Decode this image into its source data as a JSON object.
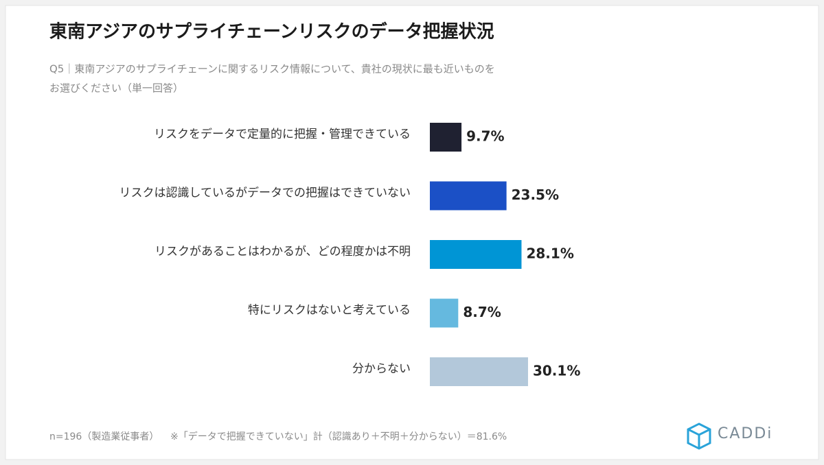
{
  "chart_data": {
    "type": "hbar",
    "title": "東南アジアのサプライチェーンリスクのデータ把握状況",
    "subtitle": [
      "Q5｜東南アジアのサプライチェーンに関するリスク情報について、貴社の現状に最も近いものを",
      "お選びください（単一回答）"
    ],
    "categories": [
      "リスクをデータで定量的に把握・管理できている",
      "リスクは認識しているがデータでの把握はできていない",
      "リスクがあることはわかるが、どの程度かは不明",
      "特にリスクはないと考えている",
      "分からない"
    ],
    "values": [
      9.7,
      23.5,
      28.1,
      8.7,
      30.1
    ],
    "value_labels": [
      "9.7%",
      "23.5%",
      "28.1%",
      "8.7%",
      "30.1%"
    ],
    "colors": [
      "#1f2131",
      "#1b50c6",
      "#0095d5",
      "#65b9df",
      "#b3c8da"
    ],
    "footnotes": [
      "n=196（製造業従事者）",
      "※「データで把握できていない」計（認識あり＋不明＋分からない）＝81.6%"
    ],
    "logo": "CADDi"
  }
}
